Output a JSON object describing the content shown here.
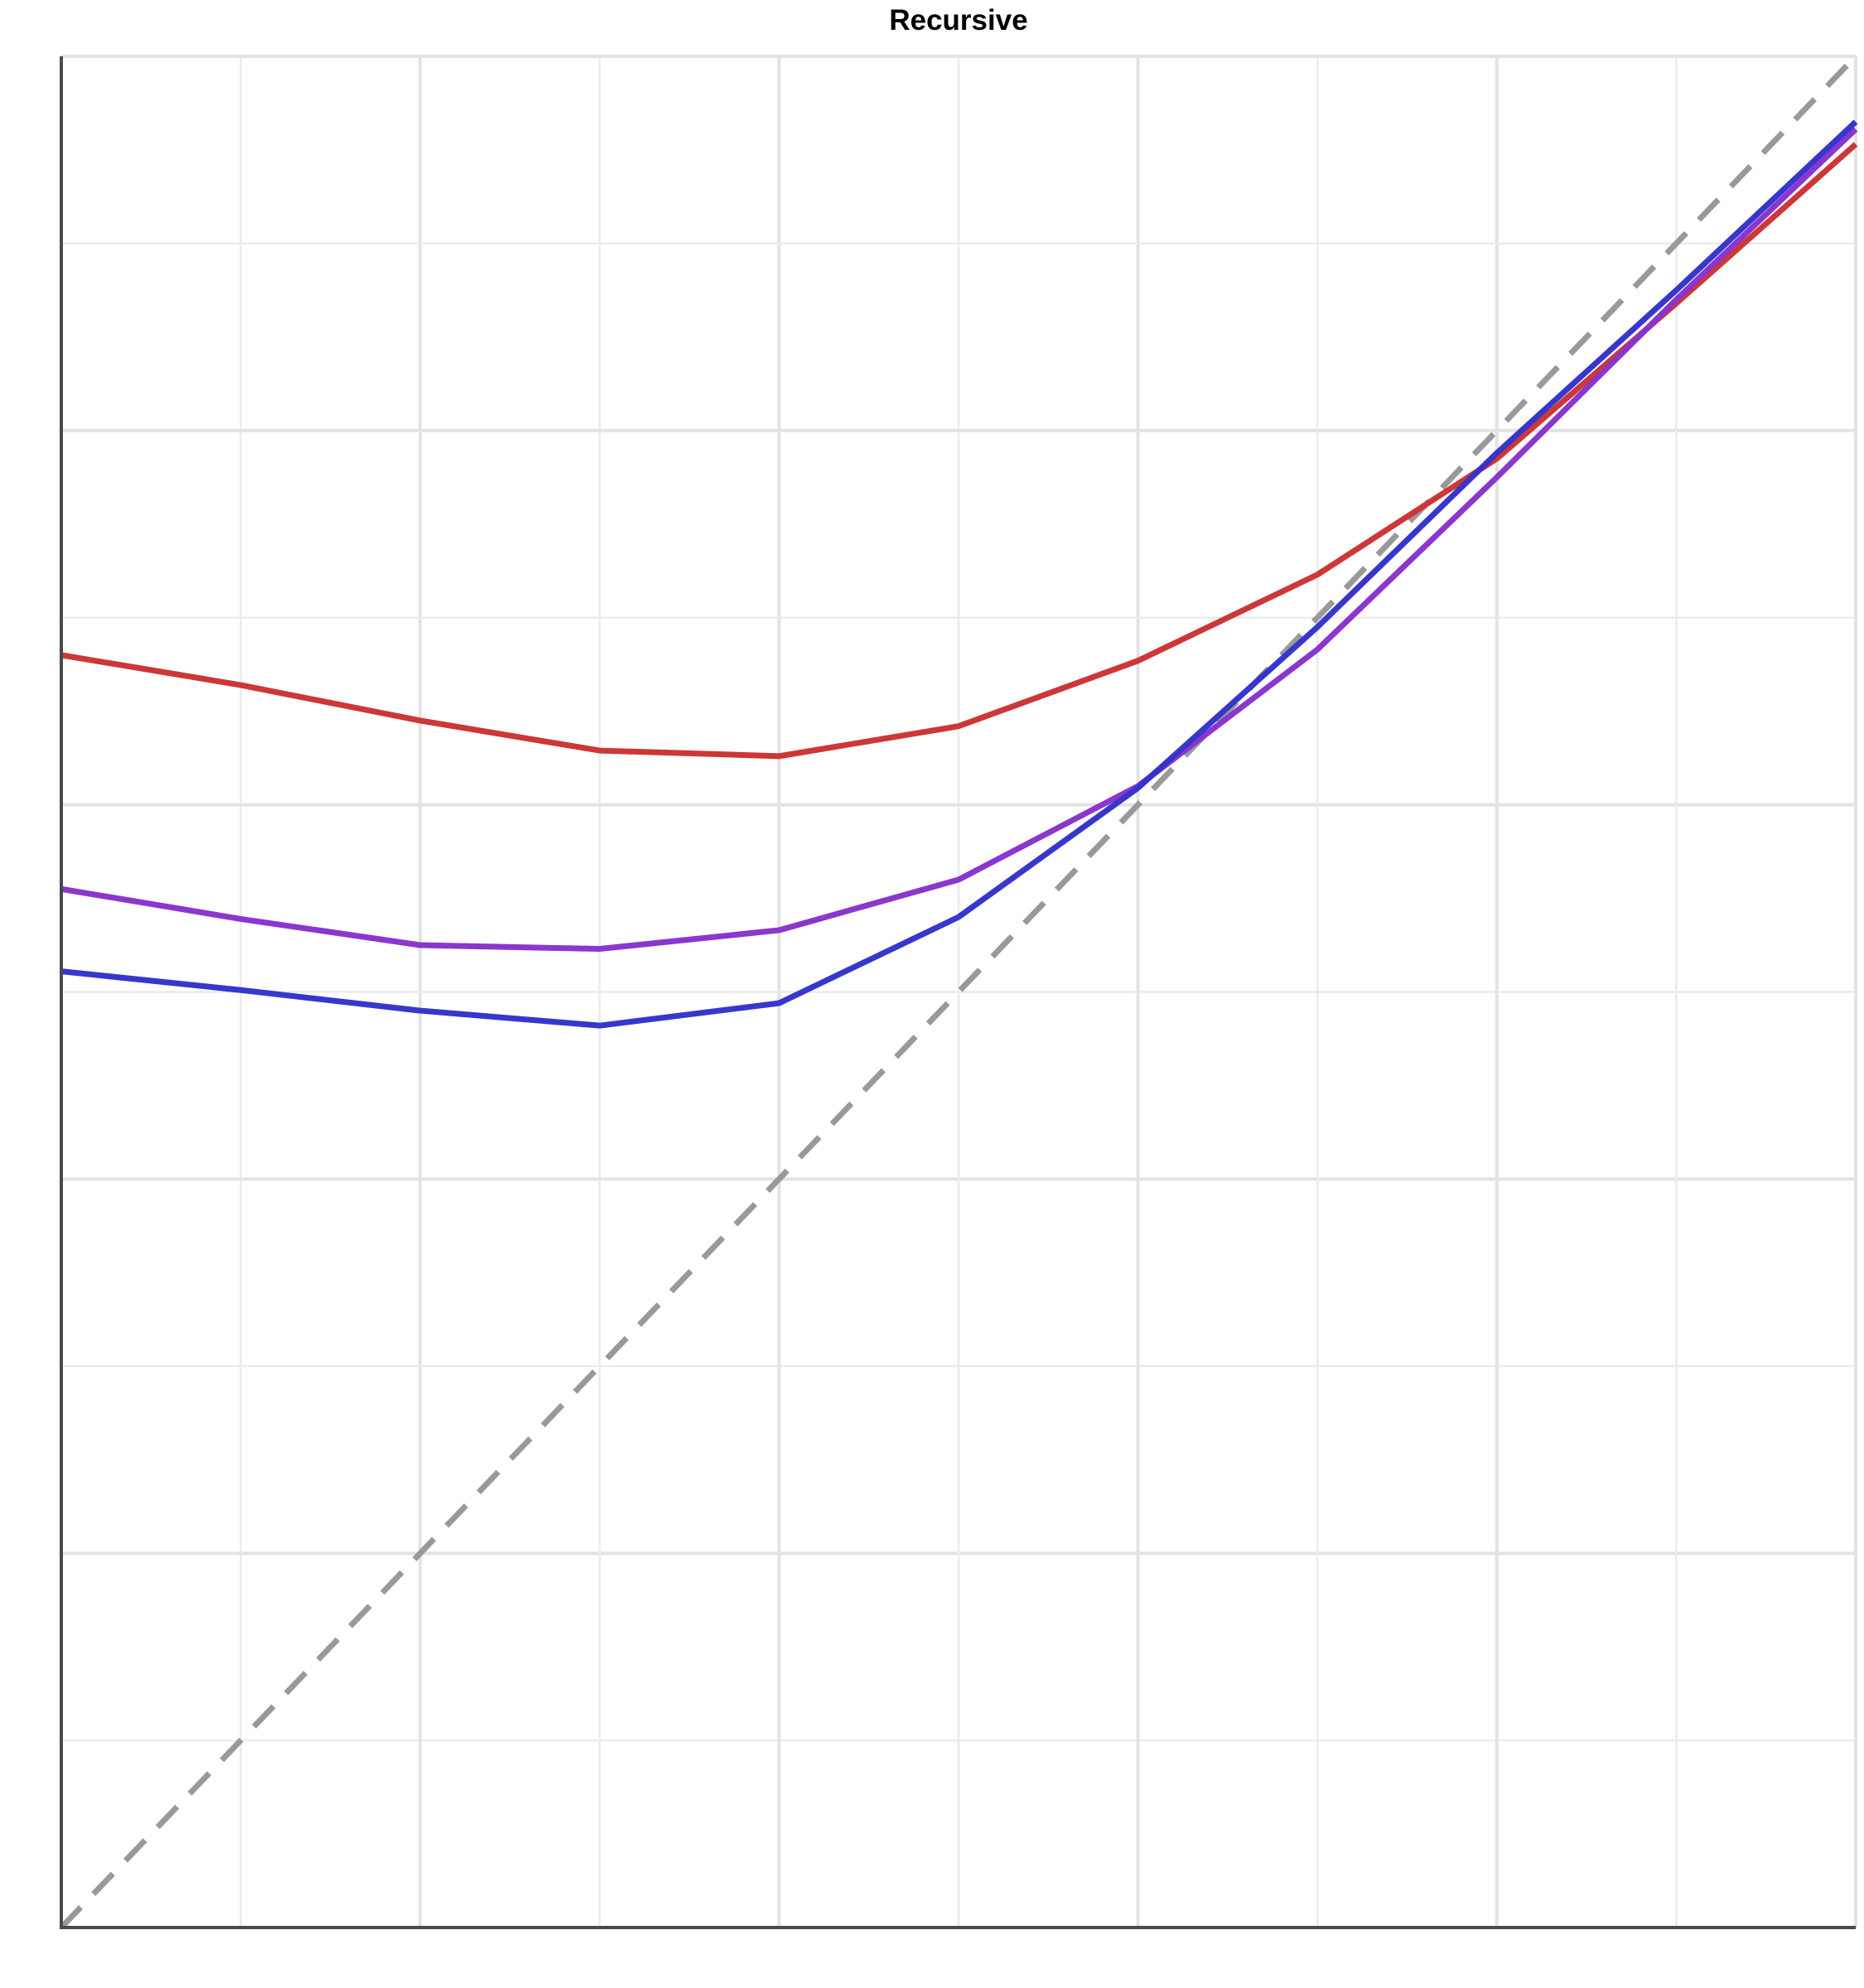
{
  "chart_data": {
    "type": "line",
    "title": "Recursive",
    "xlabel": "",
    "ylabel": "",
    "xlim": [
      0,
      1
    ],
    "ylim": [
      0,
      1
    ],
    "grid": true,
    "x": [
      0,
      0.1,
      0.2,
      0.3,
      0.4,
      0.5,
      0.6,
      0.7,
      0.8,
      0.9,
      1.0
    ],
    "series": [
      {
        "color": "#cc3333",
        "values": [
          0.68,
          0.664,
          0.645,
          0.629,
          0.626,
          0.642,
          0.677,
          0.723,
          0.785,
          0.868,
          0.953
        ]
      },
      {
        "color": "#8833cc",
        "values": [
          0.555,
          0.539,
          0.525,
          0.523,
          0.533,
          0.56,
          0.61,
          0.683,
          0.775,
          0.87,
          0.961
        ]
      },
      {
        "color": "#3333cc",
        "values": [
          0.511,
          0.501,
          0.49,
          0.482,
          0.494,
          0.54,
          0.609,
          0.695,
          0.788,
          0.875,
          0.965
        ]
      }
    ],
    "reference_line": {
      "style": "dashed",
      "color": "#999999",
      "from": [
        0,
        0
      ],
      "to": [
        1,
        1
      ]
    }
  }
}
